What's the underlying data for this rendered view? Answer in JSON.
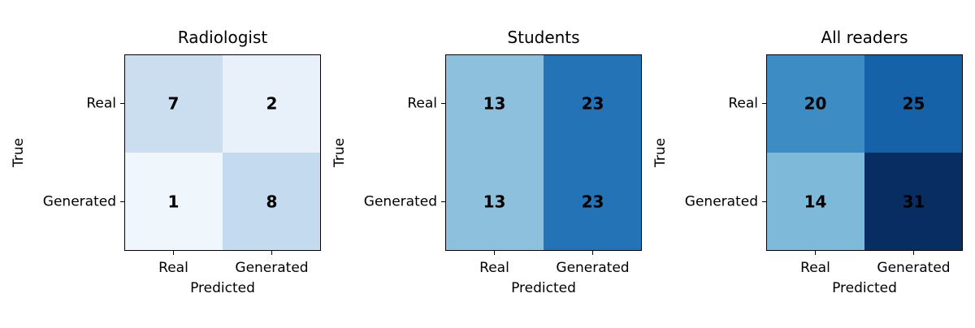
{
  "chart_data": [
    {
      "type": "heatmap",
      "title": "Radiologist",
      "xlabel": "Predicted",
      "ylabel": "True",
      "x_categories": [
        "Real",
        "Generated"
      ],
      "y_categories": [
        "Real",
        "Generated"
      ],
      "values": [
        [
          7,
          2
        ],
        [
          1,
          8
        ]
      ],
      "colormap": "Blues",
      "cell_colors": [
        [
          "#cadef0",
          "#e8f1fa"
        ],
        [
          "#eff6fc",
          "#c4daee"
        ]
      ]
    },
    {
      "type": "heatmap",
      "title": "Students",
      "xlabel": "Predicted",
      "ylabel": "True",
      "x_categories": [
        "Real",
        "Generated"
      ],
      "y_categories": [
        "Real",
        "Generated"
      ],
      "values": [
        [
          13,
          23
        ],
        [
          13,
          23
        ]
      ],
      "colormap": "Blues",
      "cell_colors": [
        [
          "#8cc0dd",
          "#2373b6"
        ],
        [
          "#8cc0dd",
          "#2373b6"
        ]
      ]
    },
    {
      "type": "heatmap",
      "title": "All readers",
      "xlabel": "Predicted",
      "ylabel": "True",
      "x_categories": [
        "Real",
        "Generated"
      ],
      "y_categories": [
        "Real",
        "Generated"
      ],
      "values": [
        [
          20,
          25
        ],
        [
          14,
          31
        ]
      ],
      "colormap": "Blues",
      "cell_colors": [
        [
          "#3d8dc4",
          "#1562a9"
        ],
        [
          "#7fb9da",
          "#082d62"
        ]
      ]
    }
  ]
}
